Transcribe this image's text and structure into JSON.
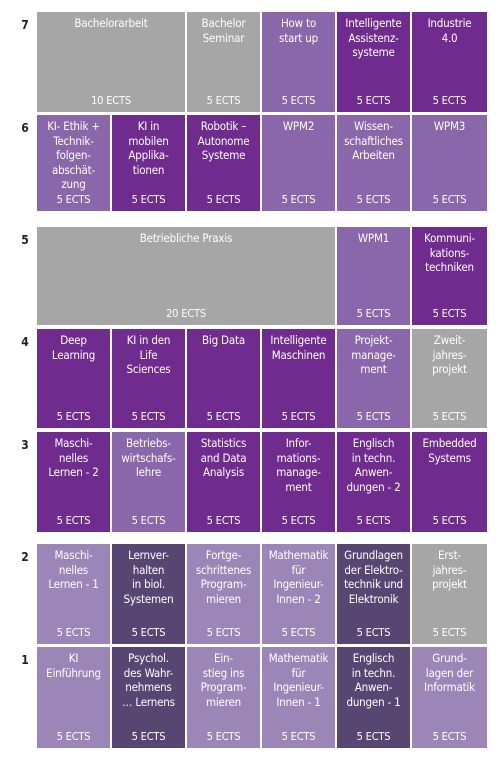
{
  "colors": {
    "gray": "#a6a6a6",
    "violet": "#6f2b8e",
    "purple": "#8a66aa",
    "light": "#9c86b7",
    "dark": "#574672",
    "text": "#ffffff"
  },
  "semesters": [
    {
      "label": "7",
      "modules": [
        {
          "title": "Bachelorarbeit",
          "ects": "10 ECTS",
          "span": 2,
          "color": "gray"
        },
        {
          "title": "Bachelor\nSeminar",
          "ects": "5 ECTS",
          "span": 1,
          "color": "gray"
        },
        {
          "title": "How to\nstart up",
          "ects": "5 ECTS",
          "span": 1,
          "color": "purple"
        },
        {
          "title": "Intelligente\nAssistenz-\nsysteme",
          "ects": "5 ECTS",
          "span": 1,
          "color": "violet"
        },
        {
          "title": "Industrie\n4.0",
          "ects": "5 ECTS",
          "span": 1,
          "color": "violet"
        }
      ]
    },
    {
      "label": "6",
      "modules": [
        {
          "title": "KI- Ethik +\nTechnik-\nfolgen-\nabschät-\nzung",
          "ects": "5 ECTS",
          "span": 1,
          "color": "purple"
        },
        {
          "title": "KI in\nmobilen\nApplika-\ntionen",
          "ects": "5 ECTS",
          "span": 1,
          "color": "violet"
        },
        {
          "title": "Robotik –\nAutonome\nSysteme",
          "ects": "5 ECTS",
          "span": 1,
          "color": "violet"
        },
        {
          "title": "WPM2",
          "ects": "5 ECTS",
          "span": 1,
          "color": "purple"
        },
        {
          "title": "Wissen-\nschaftliches\nArbeiten",
          "ects": "5 ECTS",
          "span": 1,
          "color": "purple"
        },
        {
          "title": "WPM3",
          "ects": "5 ECTS",
          "span": 1,
          "color": "purple"
        }
      ]
    },
    {
      "label": "5",
      "modules": [
        {
          "title": "Betriebliche Praxis",
          "ects": "20 ECTS",
          "span": 4,
          "color": "gray"
        },
        {
          "title": "WPM1",
          "ects": "5 ECTS",
          "span": 1,
          "color": "purple"
        },
        {
          "title": "Kommuni-\nkations-\ntechniken",
          "ects": "5 ECTS",
          "span": 1,
          "color": "violet"
        }
      ]
    },
    {
      "label": "4",
      "modules": [
        {
          "title": "Deep\nLearning",
          "ects": "5 ECTS",
          "span": 1,
          "color": "violet"
        },
        {
          "title": "KI in den\nLife\nSciences",
          "ects": "5 ECTS",
          "span": 1,
          "color": "violet"
        },
        {
          "title": "Big Data",
          "ects": "5 ECTS",
          "span": 1,
          "color": "violet"
        },
        {
          "title": "Intelligente\nMaschinen",
          "ects": "5 ECTS",
          "span": 1,
          "color": "violet"
        },
        {
          "title": "Projekt-\nmanage-\nment",
          "ects": "5 ECTS",
          "span": 1,
          "color": "purple"
        },
        {
          "title": "Zweit-\njahres-\nprojekt",
          "ects": "5 ECTS",
          "span": 1,
          "color": "gray"
        }
      ]
    },
    {
      "label": "3",
      "modules": [
        {
          "title": "Maschi-\nnelles\nLernen - 2",
          "ects": "5 ECTS",
          "span": 1,
          "color": "violet"
        },
        {
          "title": "Betriebs-\nwirtschafs-\nlehre",
          "ects": "5 ECTS",
          "span": 1,
          "color": "purple"
        },
        {
          "title": "Statistics\nand Data\nAnalysis",
          "ects": "5 ECTS",
          "span": 1,
          "color": "violet"
        },
        {
          "title": "Infor-\nmations-\nmanage-\nment",
          "ects": "5 ECTS",
          "span": 1,
          "color": "violet"
        },
        {
          "title": "Englisch\nin techn.\nAnwen-\ndungen - 2",
          "ects": "5 ECTS",
          "span": 1,
          "color": "violet"
        },
        {
          "title": "Embedded\nSystems",
          "ects": "5 ECTS",
          "span": 1,
          "color": "violet"
        }
      ]
    },
    {
      "label": "2",
      "modules": [
        {
          "title": "Maschi-\nnelles\nLernen - 1",
          "ects": "5 ECTS",
          "span": 1,
          "color": "light"
        },
        {
          "title": "Lernver-\nhalten\nin biol.\nSystemen",
          "ects": "5 ECTS",
          "span": 1,
          "color": "dark"
        },
        {
          "title": "Fortge-\nschrittenes\nProgram-\nmieren",
          "ects": "5 ECTS",
          "span": 1,
          "color": "light"
        },
        {
          "title": "Mathematik\nfür\nIngenieur-\nInnen - 2",
          "ects": "5 ECTS",
          "span": 1,
          "color": "light"
        },
        {
          "title": "Grundlagen\nder Elektro-\ntechnik und\nElektronik",
          "ects": "5 ECTS",
          "span": 1,
          "color": "dark"
        },
        {
          "title": "Erst-\njahres-\nprojekt",
          "ects": "5 ECTS",
          "span": 1,
          "color": "gray"
        }
      ]
    },
    {
      "label": "1",
      "modules": [
        {
          "title": "KI\nEinführung",
          "ects": "5 ECTS",
          "span": 1,
          "color": "light"
        },
        {
          "title": "Psychol.\ndes Wahr-\nnehmens\n… Lernens",
          "ects": "5 ECTS",
          "span": 1,
          "color": "dark"
        },
        {
          "title": "Ein-\nstieg ins\nProgram-\nmieren",
          "ects": "5 ECTS",
          "span": 1,
          "color": "light"
        },
        {
          "title": "Mathematik\nfür\nIngenieur-\nInnen - 1",
          "ects": "5 ECTS",
          "span": 1,
          "color": "light"
        },
        {
          "title": "Englisch\nin techn.\nAnwen-\ndungen - 1",
          "ects": "5 ECTS",
          "span": 1,
          "color": "dark"
        },
        {
          "title": "Grund-\nlagen der\nInformatik",
          "ects": "5 ECTS",
          "span": 1,
          "color": "light"
        }
      ]
    }
  ]
}
